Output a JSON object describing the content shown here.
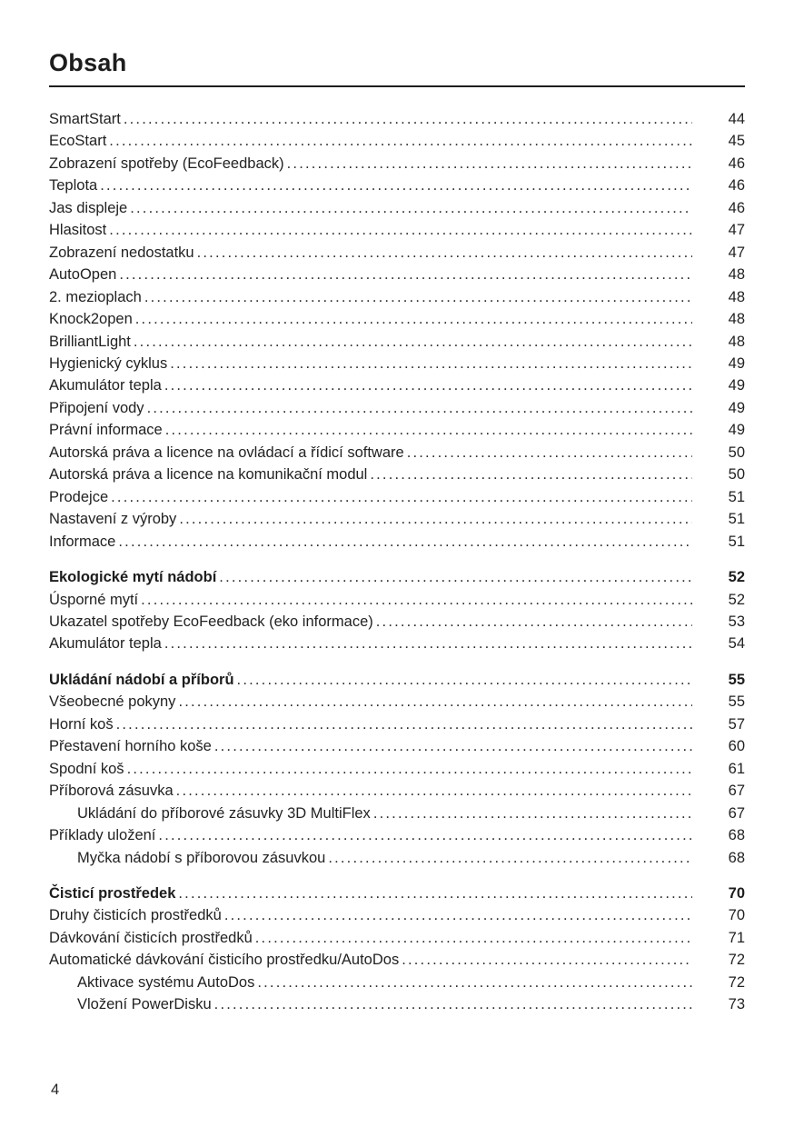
{
  "page": {
    "title": "Obsah",
    "footer_page_number": "4"
  },
  "toc": {
    "sections": [
      {
        "entries": [
          {
            "label": "SmartStart",
            "page": "44"
          },
          {
            "label": "EcoStart",
            "page": "45"
          },
          {
            "label": "Zobrazení spotřeby (EcoFeedback)",
            "page": "46"
          },
          {
            "label": "Teplota",
            "page": "46"
          },
          {
            "label": "Jas displeje",
            "page": "46"
          },
          {
            "label": "Hlasitost",
            "page": "47"
          },
          {
            "label": "Zobrazení nedostatku",
            "page": "47"
          },
          {
            "label": "AutoOpen",
            "page": "48"
          },
          {
            "label": "2. mezioplach",
            "page": "48"
          },
          {
            "label": "Knock2open",
            "page": "48"
          },
          {
            "label": "BrilliantLight",
            "page": "48"
          },
          {
            "label": "Hygienický cyklus",
            "page": "49"
          },
          {
            "label": "Akumulátor tepla",
            "page": "49"
          },
          {
            "label": "Připojení vody",
            "page": "49"
          },
          {
            "label": "Právní informace",
            "page": "49"
          },
          {
            "label": "Autorská práva a licence na ovládací a řídicí software",
            "page": "50"
          },
          {
            "label": "Autorská práva a licence na komunikační modul",
            "page": "50"
          },
          {
            "label": "Prodejce",
            "page": "51"
          },
          {
            "label": "Nastavení z výroby",
            "page": "51"
          },
          {
            "label": "Informace",
            "page": "51"
          }
        ]
      },
      {
        "entries": [
          {
            "label": "Ekologické mytí nádobí",
            "page": "52",
            "bold": true
          },
          {
            "label": "Úsporné mytí",
            "page": "52"
          },
          {
            "label": "Ukazatel spotřeby EcoFeedback (eko informace)",
            "page": "53"
          },
          {
            "label": "Akumulátor tepla",
            "page": "54"
          }
        ]
      },
      {
        "entries": [
          {
            "label": "Ukládání nádobí a příborů",
            "page": "55",
            "bold": true
          },
          {
            "label": "Všeobecné pokyny",
            "page": "55"
          },
          {
            "label": "Horní koš",
            "page": "57"
          },
          {
            "label": "Přestavení horního koše",
            "page": "60"
          },
          {
            "label": "Spodní koš",
            "page": "61"
          },
          {
            "label": "Příborová zásuvka",
            "page": "67"
          },
          {
            "label": "Ukládání do příborové zásuvky 3D MultiFlex",
            "page": "67",
            "indent": 1
          },
          {
            "label": "Příklady uložení",
            "page": "68"
          },
          {
            "label": "Myčka nádobí s příborovou zásuvkou",
            "page": "68",
            "indent": 1
          }
        ]
      },
      {
        "entries": [
          {
            "label": "Čisticí prostředek",
            "page": "70",
            "bold": true
          },
          {
            "label": "Druhy čisticích prostředků",
            "page": "70"
          },
          {
            "label": "Dávkování čisticích prostředků",
            "page": "71"
          },
          {
            "label": "Automatické dávkování čisticího prostředku/AutoDos",
            "page": "72"
          },
          {
            "label": "Aktivace systému AutoDos",
            "page": "72",
            "indent": 1
          },
          {
            "label": "Vložení PowerDisku",
            "page": "73",
            "indent": 1
          }
        ]
      }
    ]
  }
}
